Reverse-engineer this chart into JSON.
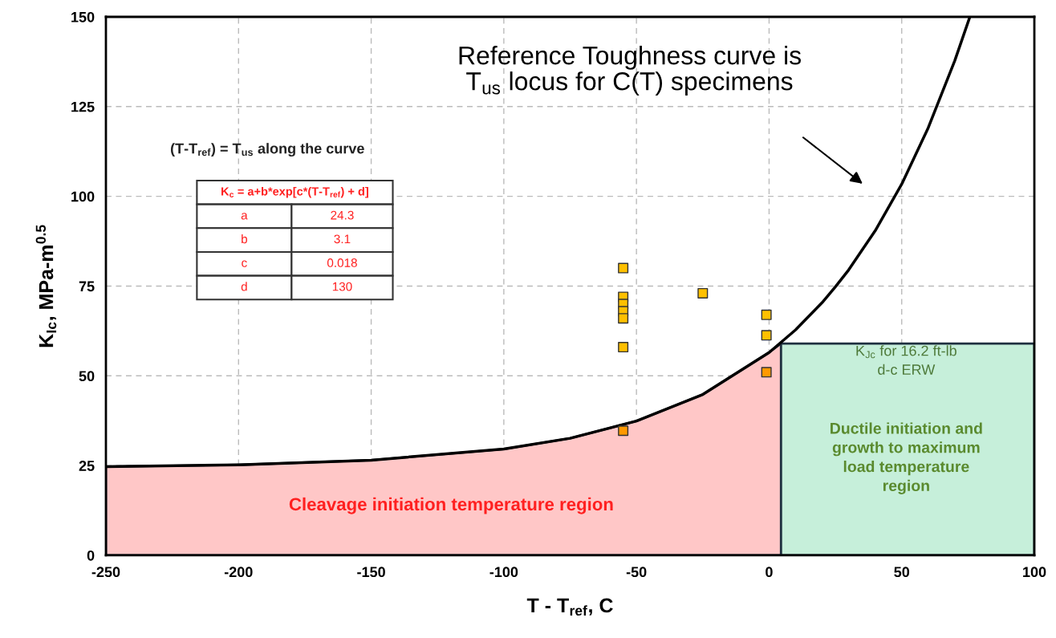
{
  "chart_data": {
    "type": "line",
    "xlabel": "T - T$_{ref}$, C",
    "ylabel": "K$_{Ic}$, MPa-m$^{0.5}$",
    "xlim": [
      -250,
      100
    ],
    "ylim": [
      0,
      150
    ],
    "xticks": [
      -250,
      -200,
      -150,
      -100,
      -50,
      0,
      50,
      100
    ],
    "yticks": [
      0,
      25,
      50,
      75,
      100,
      125,
      150
    ],
    "grid": true,
    "line_style": "solid",
    "series": [
      {
        "type": "area",
        "color": "#ffc7c7",
        "x": [
          -250,
          -200,
          -150,
          -100,
          -75,
          -50,
          -25,
          0,
          4.5
        ],
        "values": [
          24.7,
          25.2,
          26.5,
          29.6,
          32.6,
          37.4,
          44.8,
          56.5,
          59
        ]
      },
      {
        "type": "area",
        "color": "#c6efda",
        "x": [
          4.5,
          100
        ],
        "values": [
          59,
          59
        ]
      },
      {
        "color": "#000000",
        "x": [
          -250,
          -200,
          -150,
          -100,
          -75,
          -50,
          -25,
          0,
          10,
          20,
          25,
          30,
          40,
          50,
          60,
          70,
          75.6
        ],
        "values": [
          24.7,
          25.2,
          26.5,
          29.6,
          32.6,
          37.4,
          44.8,
          56.5,
          62.8,
          70.4,
          74.8,
          79.5,
          90.4,
          103.4,
          119.1,
          137.8,
          149.8
        ]
      },
      {
        "type": "scatter",
        "color": "#ffc000",
        "marker": "square",
        "x": [
          -55,
          -55,
          -55,
          -55,
          -55,
          -55,
          -25,
          -1,
          -1
        ],
        "values": [
          80,
          72,
          70,
          68,
          66,
          58,
          73,
          67,
          61.3
        ]
      },
      {
        "type": "scatter",
        "color": "#ff9900",
        "marker": "square",
        "x": [
          -55,
          -1
        ],
        "values": [
          34.7,
          51
        ]
      }
    ],
    "annotations": [
      "Reference Toughness curve is\nT$_{us}$ locus for C(T) specimens",
      "(T-T$_{ref}$) = T$_{us}$ along the curve",
      "K$_{Jc}$ for 16.2 ft-lb\nd-c ERW",
      "Ductile initiation and\ngrowth to maximum\nload temperature\nregion",
      "Cleavage initiation temperature region",
      "K$_{c}$ = a+b*exp[c*(T-T$_{ref}$) + d]",
      "a",
      "24.3",
      "b",
      "3.1",
      "c",
      "0.018",
      "d",
      "130"
    ]
  }
}
